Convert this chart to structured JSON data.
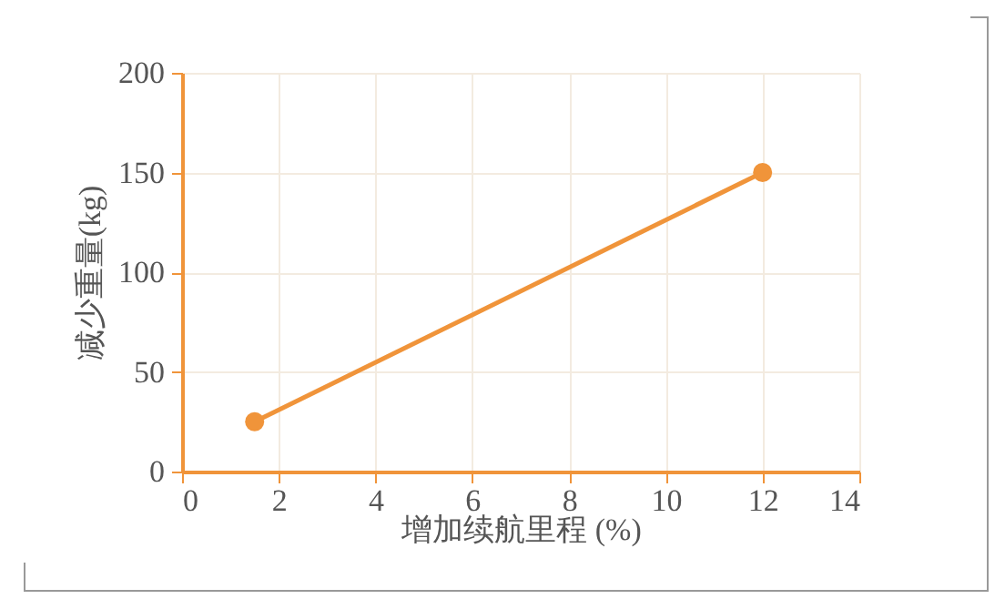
{
  "chart_data": {
    "type": "line",
    "xlabel": "增加续航里程 (%)",
    "ylabel": "减少重量(kg)",
    "x": [
      1.5,
      12
    ],
    "series": [
      {
        "color": "#f0943a",
        "values": [
          25,
          150
        ]
      }
    ],
    "xlim": [
      0,
      14
    ],
    "xticks": [
      0,
      2,
      4,
      6,
      8,
      10,
      12,
      14
    ],
    "ylim": [
      0,
      200
    ],
    "yticks": [
      0,
      50,
      100,
      150,
      200
    ],
    "grid": true,
    "marker": "circle",
    "line_style": "solid"
  }
}
